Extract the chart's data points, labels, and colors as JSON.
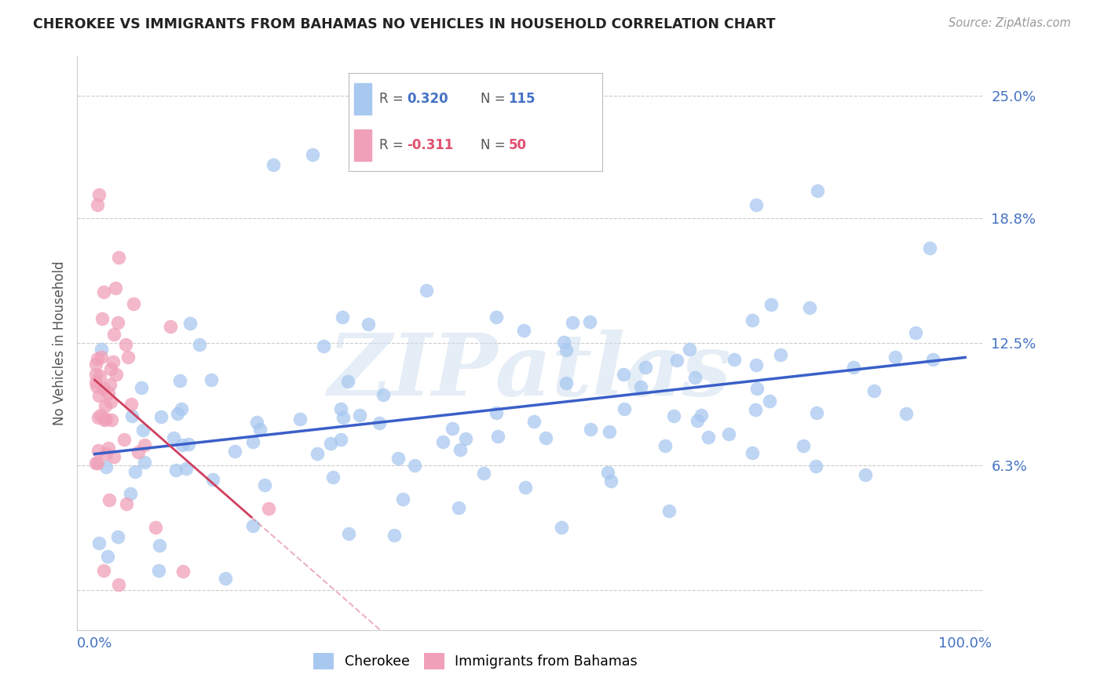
{
  "title": "CHEROKEE VS IMMIGRANTS FROM BAHAMAS NO VEHICLES IN HOUSEHOLD CORRELATION CHART",
  "source": "Source: ZipAtlas.com",
  "ylabel": "No Vehicles in Household",
  "xlim": [
    -2,
    102
  ],
  "ylim": [
    -2,
    27
  ],
  "ytick_vals": [
    0,
    6.3,
    12.5,
    18.8,
    25.0
  ],
  "ytick_labels": [
    "",
    "6.3%",
    "12.5%",
    "18.8%",
    "25.0%"
  ],
  "xtick_vals": [
    0,
    50,
    100
  ],
  "xtick_labels": [
    "0.0%",
    "",
    "100.0%"
  ],
  "grid_color": "#cccccc",
  "background_color": "#ffffff",
  "blue_color": "#a8c8f0",
  "blue_line_color": "#3a5fc8",
  "pink_color": "#f0a0b8",
  "pink_line_color": "#d04060",
  "watermark": "ZIPatlas",
  "blue_r": 0.32,
  "blue_n": 115,
  "pink_r": -0.311,
  "pink_n": 50,
  "blue_line_x0": 0,
  "blue_line_y0": 6.3,
  "blue_line_x1": 100,
  "blue_line_y1": 12.5,
  "pink_line_x0": 0,
  "pink_line_y0": 10.5,
  "pink_line_x1": 18,
  "pink_line_y1": 6.0
}
